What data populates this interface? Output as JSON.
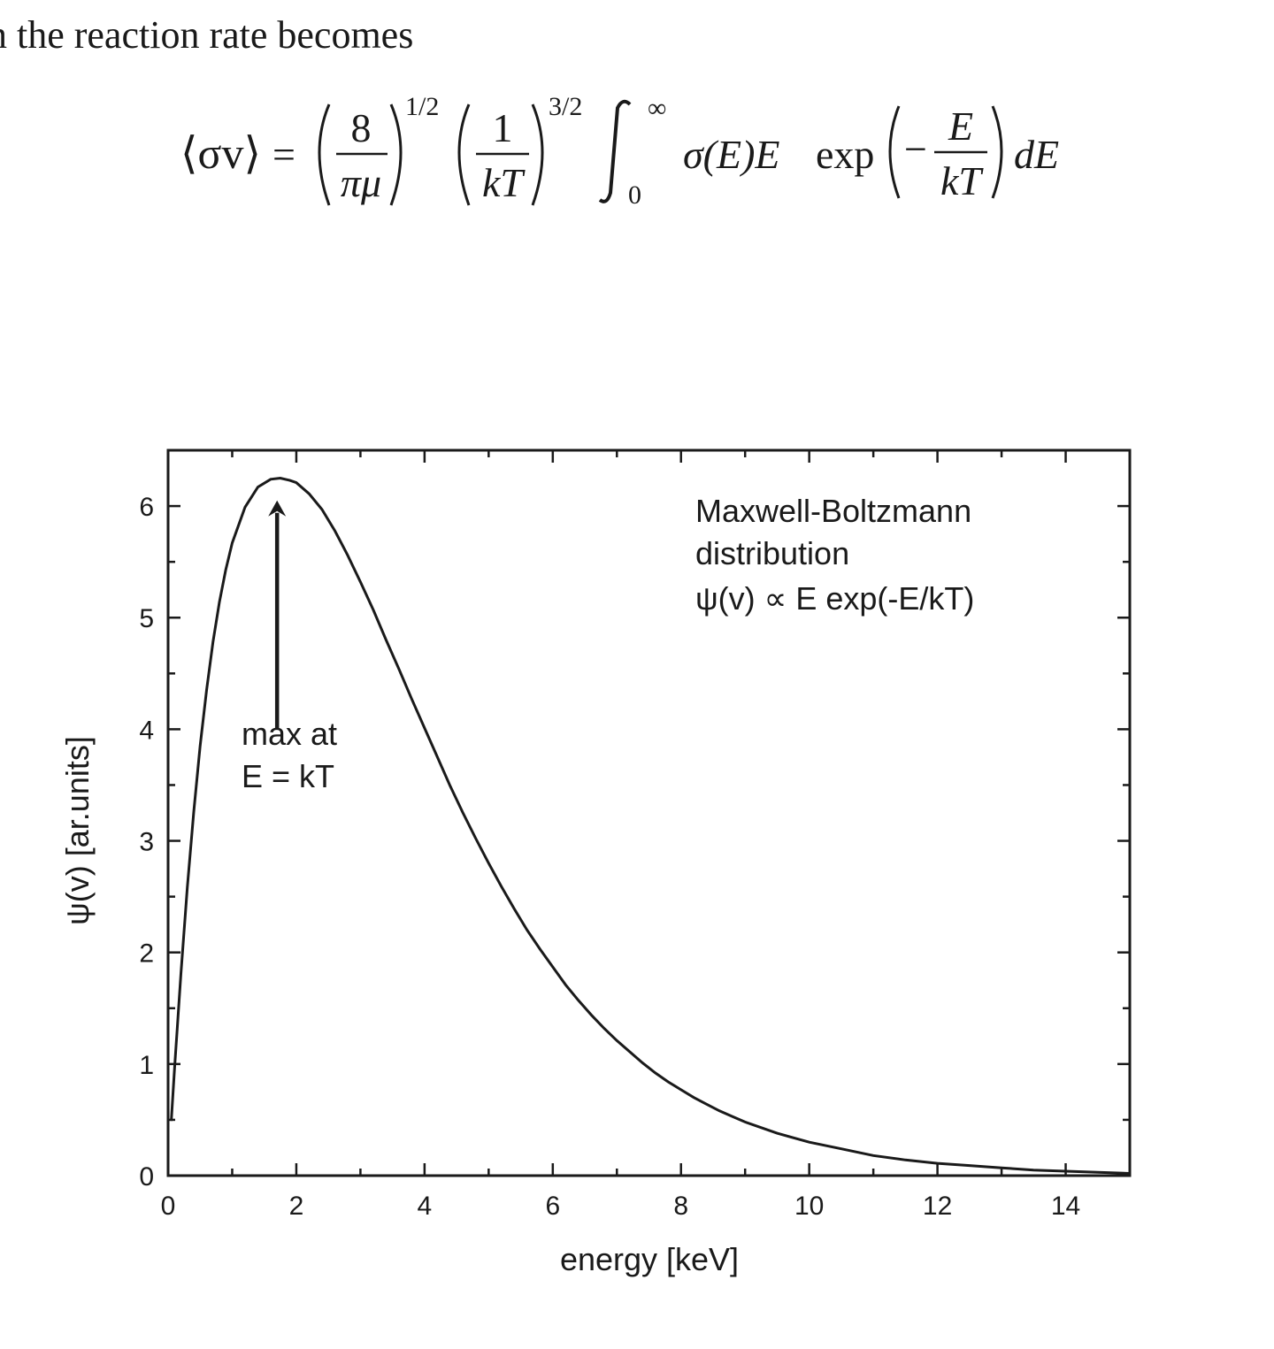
{
  "intro": {
    "text": "n the reaction rate becomes"
  },
  "equation": {
    "lhs": "⟨σv⟩",
    "equals": "=",
    "frac1_num": "8",
    "frac1_den": "πμ",
    "exp1": "1/2",
    "frac2_num": "1",
    "frac2_den": "kT",
    "exp2": "3/2",
    "integral_lower": "0",
    "integral_upper": "∞",
    "integrand": "σ(E)E",
    "exp_func": "exp",
    "minus": "−",
    "frac3_num": "E",
    "frac3_den": "kT",
    "differential": "dE"
  },
  "chart_data": {
    "type": "line",
    "xlabel": "energy [keV]",
    "ylabel": "ψ(v) [ar.units]",
    "xlim": [
      0,
      15
    ],
    "ylim": [
      0,
      6.5
    ],
    "x_ticks": [
      "0",
      "2",
      "4",
      "6",
      "8",
      "10",
      "12",
      "14"
    ],
    "x_tick_values": [
      0,
      2,
      4,
      6,
      8,
      10,
      12,
      14
    ],
    "y_ticks": [
      "0",
      "1",
      "2",
      "3",
      "4",
      "5",
      "6"
    ],
    "y_tick_values": [
      0,
      1,
      2,
      3,
      4,
      5,
      6
    ],
    "grid": false,
    "series": [
      {
        "x": [
          0.05,
          0.1,
          0.2,
          0.3,
          0.4,
          0.5,
          0.6,
          0.7,
          0.8,
          0.9,
          1.0,
          1.2,
          1.4,
          1.6,
          1.75,
          1.9,
          2.0,
          2.2,
          2.4,
          2.6,
          2.8,
          3.0,
          3.2,
          3.4,
          3.6,
          3.8,
          4.0,
          4.2,
          4.4,
          4.6,
          4.8,
          5.0,
          5.2,
          5.4,
          5.6,
          5.8,
          6.0,
          6.2,
          6.4,
          6.6,
          6.8,
          7.0,
          7.2,
          7.4,
          7.6,
          7.8,
          8.0,
          8.2,
          8.4,
          8.6,
          8.8,
          9.0,
          9.5,
          10.0,
          10.5,
          11.0,
          11.5,
          12.0,
          12.5,
          13.0,
          13.5,
          14.0,
          14.5,
          15.0
        ],
        "y": [
          0.49,
          0.95,
          1.81,
          2.58,
          3.26,
          3.85,
          4.35,
          4.78,
          5.14,
          5.43,
          5.67,
          5.99,
          6.17,
          6.24,
          6.25,
          6.23,
          6.21,
          6.11,
          5.97,
          5.78,
          5.56,
          5.32,
          5.07,
          4.8,
          4.54,
          4.27,
          4.01,
          3.75,
          3.49,
          3.25,
          3.02,
          2.8,
          2.59,
          2.39,
          2.2,
          2.03,
          1.87,
          1.71,
          1.57,
          1.44,
          1.32,
          1.21,
          1.11,
          1.01,
          0.92,
          0.84,
          0.77,
          0.7,
          0.64,
          0.58,
          0.53,
          0.48,
          0.38,
          0.3,
          0.24,
          0.18,
          0.14,
          0.11,
          0.09,
          0.07,
          0.05,
          0.04,
          0.03,
          0.02
        ]
      }
    ],
    "annotations": {
      "legend_lines": [
        "Maxwell-Boltzmann",
        "distribution",
        "ψ(v) ∝ E exp(-E/kT)"
      ],
      "peak_label_lines": [
        "max at",
        "E = kT"
      ],
      "arrow": {
        "x": 1.7,
        "y_from": 4.0,
        "y_to": 6.05
      }
    }
  },
  "colors": {
    "ink": "#1a1a1a",
    "background": "#ffffff"
  }
}
